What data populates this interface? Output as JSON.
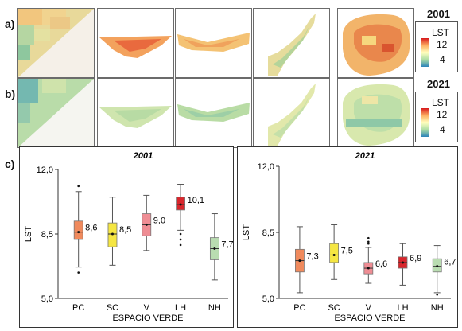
{
  "labels": {
    "a": "a)",
    "b": "b)",
    "c": "c)"
  },
  "legends": [
    {
      "year": "2001",
      "title": "LST",
      "max": "12",
      "min": "4"
    },
    {
      "year": "2021",
      "title": "LST",
      "max": "12",
      "min": "4"
    }
  ],
  "colors": {
    "PC": "#f08a5d",
    "SC": "#f5e642",
    "V": "#ef8d94",
    "LH": "#d9262c",
    "NH": "#b9dcb1"
  },
  "chart_data": [
    {
      "type": "box",
      "title": "2001",
      "xlabel": "ESPACIO VERDE",
      "ylabel": "LST",
      "ylim": [
        5,
        12
      ],
      "yticks": [
        "5,0",
        "8,5",
        "12,0"
      ],
      "categories": [
        "PC",
        "SC",
        "V",
        "LH",
        "NH"
      ],
      "series": [
        {
          "category": "PC",
          "min": 6.7,
          "q1": 8.2,
          "median": 8.6,
          "q3": 9.2,
          "max": 10.8,
          "mean_label": "8,6",
          "outliers": [
            6.4,
            11.1
          ]
        },
        {
          "category": "SC",
          "min": 6.8,
          "q1": 7.8,
          "median": 8.5,
          "q3": 9.1,
          "max": 10.5,
          "mean_label": "8,5",
          "outliers": []
        },
        {
          "category": "V",
          "min": 7.6,
          "q1": 8.4,
          "median": 9.0,
          "q3": 9.6,
          "max": 10.6,
          "mean_label": "9,0",
          "outliers": []
        },
        {
          "category": "LH",
          "min": 8.7,
          "q1": 9.8,
          "median": 10.1,
          "q3": 10.5,
          "max": 11.2,
          "mean_label": "10,1",
          "outliers": [
            7.9,
            8.2,
            8.5
          ]
        },
        {
          "category": "NH",
          "min": 6.0,
          "q1": 7.1,
          "median": 7.7,
          "q3": 8.3,
          "max": 9.6,
          "mean_label": "7,7",
          "outliers": []
        }
      ]
    },
    {
      "type": "box",
      "title": "2021",
      "xlabel": "ESPACIO VERDE",
      "ylabel": "LST",
      "ylim": [
        5,
        12
      ],
      "yticks": [
        "5,0",
        "8,5",
        "12,0"
      ],
      "categories": [
        "PC",
        "SC",
        "V",
        "LH",
        "NH"
      ],
      "series": [
        {
          "category": "PC",
          "min": 5.3,
          "q1": 6.4,
          "median": 7.0,
          "q3": 7.6,
          "max": 8.8,
          "mean_label": "7,3",
          "outliers": []
        },
        {
          "category": "SC",
          "min": 6.0,
          "q1": 6.9,
          "median": 7.3,
          "q3": 7.9,
          "max": 8.9,
          "mean_label": "7,5",
          "outliers": []
        },
        {
          "category": "V",
          "min": 5.8,
          "q1": 6.3,
          "median": 6.6,
          "q3": 6.9,
          "max": 7.7,
          "mean_label": "6,6",
          "outliers": [
            7.9,
            8.0,
            8.2
          ]
        },
        {
          "category": "LH",
          "min": 5.7,
          "q1": 6.6,
          "median": 6.9,
          "q3": 7.2,
          "max": 7.9,
          "mean_label": "6,9",
          "outliers": []
        },
        {
          "category": "NH",
          "min": 5.3,
          "q1": 6.4,
          "median": 6.7,
          "q3": 7.1,
          "max": 7.8,
          "mean_label": "6,7",
          "outliers": [
            5.2
          ]
        }
      ]
    }
  ]
}
